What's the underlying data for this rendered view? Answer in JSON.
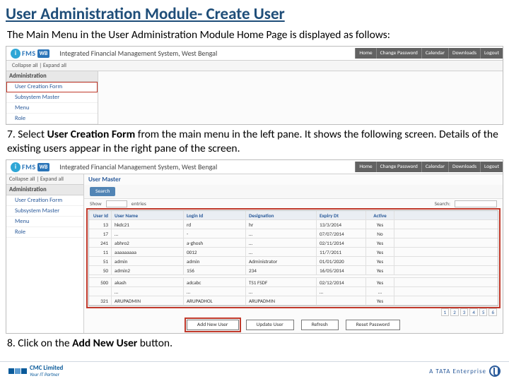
{
  "slide": {
    "title": "User Administration Module- Create User",
    "intro": "The Main Menu  in the User Administration Module Home Page is displayed as follows:",
    "step7_pre": "7. Select ",
    "step7_bold": "User Creation Form",
    "step7_post": " from the main menu in the left pane. It shows the following screen.  Details of the existing users appear in the right pane of the screen.",
    "step8_pre": "8. Click on the ",
    "step8_bold": "Add New User",
    "step8_post": " button."
  },
  "header": {
    "i": "i",
    "fms": "FMS",
    "wb": "WB",
    "system_title": "Integrated Financial Management System, West Bengal",
    "links": [
      "Home",
      "Change Password",
      "Calendar",
      "Downloads",
      "Logout"
    ]
  },
  "ss1": {
    "toolbar": "Collapse all | Expand all",
    "group": "Administration",
    "items": [
      "User Creation Form",
      "Subsystem Master",
      "Menu",
      "Role"
    ]
  },
  "ss2": {
    "toolbar": "Collapse all | Expand all",
    "group": "Administration",
    "items": [
      "User Creation Form",
      "Subsystem Master",
      "Menu",
      "Role"
    ],
    "main_title": "User Master",
    "search_label": "Search",
    "show_label": "Show",
    "entries_label": "entries",
    "page_label": "Search:",
    "columns": [
      "User Id",
      "User Name",
      "Login Id",
      "Designation",
      "Expiry Dt",
      "Active"
    ],
    "rows": [
      [
        "13",
        "hkdc21",
        "rd",
        "hr",
        "13/3/2014",
        "Yes"
      ],
      [
        "17",
        "…",
        "-",
        "…",
        "07/07/2014",
        "No"
      ],
      [
        "241",
        "abhro2",
        "a-ghosh",
        "…",
        "02/11/2014",
        "Yes"
      ],
      [
        "11",
        "aaaaaaaaa",
        "0012",
        "…",
        "11/7/2011",
        "Yes"
      ],
      [
        "51",
        "admin",
        "admin",
        "Administrator",
        "01/01/2020",
        "Yes"
      ],
      [
        "50",
        "admin2",
        "156",
        "234",
        "16/05/2014",
        "Yes"
      ],
      "",
      [
        "500",
        "akash",
        "adcabc",
        "TS1 FSDF",
        "02/12/2014",
        "Yes"
      ],
      [
        "",
        "…",
        "…",
        "…",
        "…",
        "…"
      ],
      [
        "321",
        "ARUPADMIN",
        "ARUPADHOL",
        "ARUPADMIN",
        "",
        "Yes"
      ]
    ],
    "buttons": [
      "Add New User",
      "Update User",
      "Refresh",
      "Reset Password"
    ],
    "pager": [
      "1",
      "2",
      "3",
      "4",
      "5",
      "6"
    ]
  },
  "footer": {
    "cmc_line1": "CMC Limited",
    "cmc_line2": "Your IT Partner",
    "tata": "A TATA Enterprise"
  },
  "colors": {
    "title_color": "#1f4e79",
    "accent": "#2a74b8",
    "highlight_box": "#c0392b",
    "header_link_bg": "#626262"
  }
}
